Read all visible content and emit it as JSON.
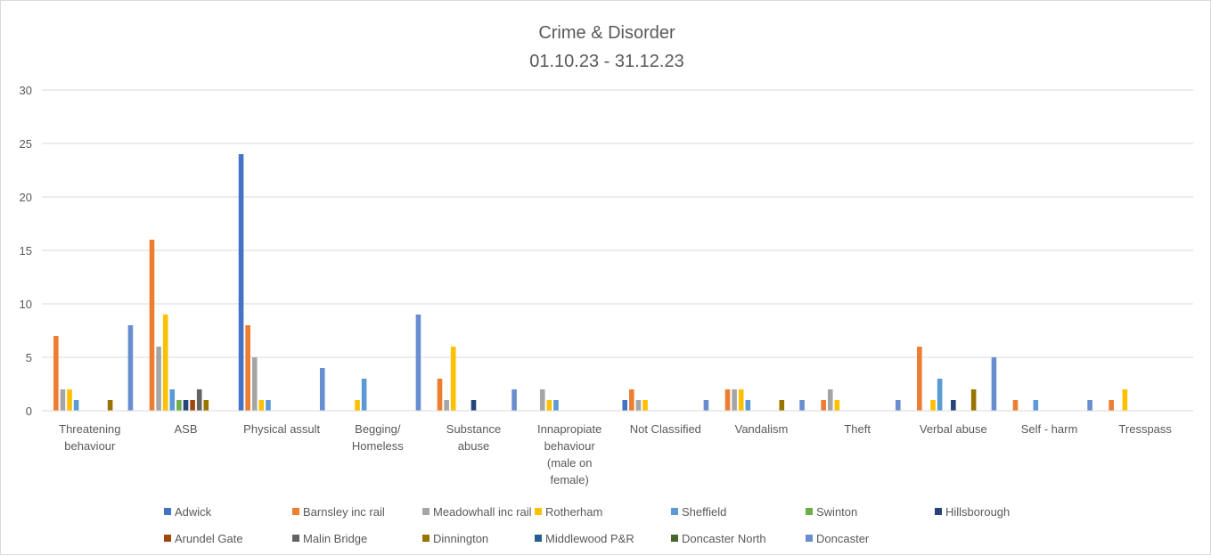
{
  "chart_data": {
    "type": "bar",
    "title": "Crime & Disorder",
    "subtitle": "01.10.23 - 31.12.23",
    "ylim": [
      0,
      30
    ],
    "yticks": [
      0,
      5,
      10,
      15,
      20,
      25,
      30
    ],
    "grid": true,
    "legend_position": "bottom",
    "categories": [
      "Threatening behaviour",
      "ASB",
      "Physical assult",
      "Begging/ Homeless",
      "Substance abuse",
      "Innapropiate behaviour (male on female)",
      "Not Classified",
      "Vandalism",
      "Theft",
      "Verbal abuse",
      "Self - harm",
      "Tresspass"
    ],
    "category_label_lines": [
      [
        "Threatening",
        "behaviour"
      ],
      [
        "ASB"
      ],
      [
        "Physical assult"
      ],
      [
        "Begging/",
        "Homeless"
      ],
      [
        "Substance",
        "abuse"
      ],
      [
        "Innapropiate",
        "behaviour",
        "(male on",
        "female)"
      ],
      [
        "Not Classified"
      ],
      [
        "Vandalism"
      ],
      [
        "Theft"
      ],
      [
        "Verbal abuse"
      ],
      [
        "Self - harm"
      ],
      [
        "Tresspass"
      ]
    ],
    "series": [
      {
        "name": "Adwick",
        "color": "#4472C4",
        "values": [
          0,
          0,
          24,
          0,
          0,
          0,
          1,
          0,
          0,
          0,
          0,
          0
        ]
      },
      {
        "name": "Barnsley inc rail",
        "color": "#ED7D31",
        "values": [
          7,
          16,
          8,
          0,
          3,
          0,
          2,
          2,
          1,
          6,
          1,
          1
        ]
      },
      {
        "name": "Meadowhall inc rail",
        "color": "#A5A5A5",
        "values": [
          2,
          6,
          5,
          0,
          1,
          2,
          1,
          2,
          2,
          0,
          0,
          0
        ]
      },
      {
        "name": "Rotherham",
        "color": "#FFC000",
        "values": [
          2,
          9,
          1,
          1,
          6,
          1,
          1,
          2,
          1,
          1,
          0,
          2
        ]
      },
      {
        "name": "Sheffield",
        "color": "#5B9BD5",
        "values": [
          1,
          2,
          1,
          3,
          0,
          1,
          0,
          1,
          0,
          3,
          1,
          0
        ]
      },
      {
        "name": "Swinton",
        "color": "#70AD47",
        "values": [
          0,
          1,
          0,
          0,
          0,
          0,
          0,
          0,
          0,
          0,
          0,
          0
        ]
      },
      {
        "name": "Hillsborough",
        "color": "#264478",
        "values": [
          0,
          1,
          0,
          0,
          1,
          0,
          0,
          0,
          0,
          1,
          0,
          0
        ]
      },
      {
        "name": "Arundel Gate",
        "color": "#9E480E",
        "values": [
          0,
          1,
          0,
          0,
          0,
          0,
          0,
          0,
          0,
          0,
          0,
          0
        ]
      },
      {
        "name": "Malin Bridge",
        "color": "#636363",
        "values": [
          0,
          2,
          0,
          0,
          0,
          0,
          0,
          0,
          0,
          0,
          0,
          0
        ]
      },
      {
        "name": "Dinnington",
        "color": "#997300",
        "values": [
          1,
          1,
          0,
          0,
          0,
          0,
          0,
          1,
          0,
          2,
          0,
          0
        ]
      },
      {
        "name": "Middlewood P&R",
        "color": "#255E91",
        "values": [
          0,
          0,
          0,
          0,
          0,
          0,
          0,
          0,
          0,
          0,
          0,
          0
        ]
      },
      {
        "name": "Doncaster North",
        "color": "#43682B",
        "values": [
          0,
          0,
          0,
          0,
          0,
          0,
          0,
          0,
          0,
          0,
          0,
          0
        ]
      },
      {
        "name": "Doncaster",
        "color": "#698ED0",
        "values": [
          8,
          0,
          4,
          9,
          2,
          0,
          1,
          1,
          1,
          5,
          1,
          0
        ]
      }
    ]
  }
}
